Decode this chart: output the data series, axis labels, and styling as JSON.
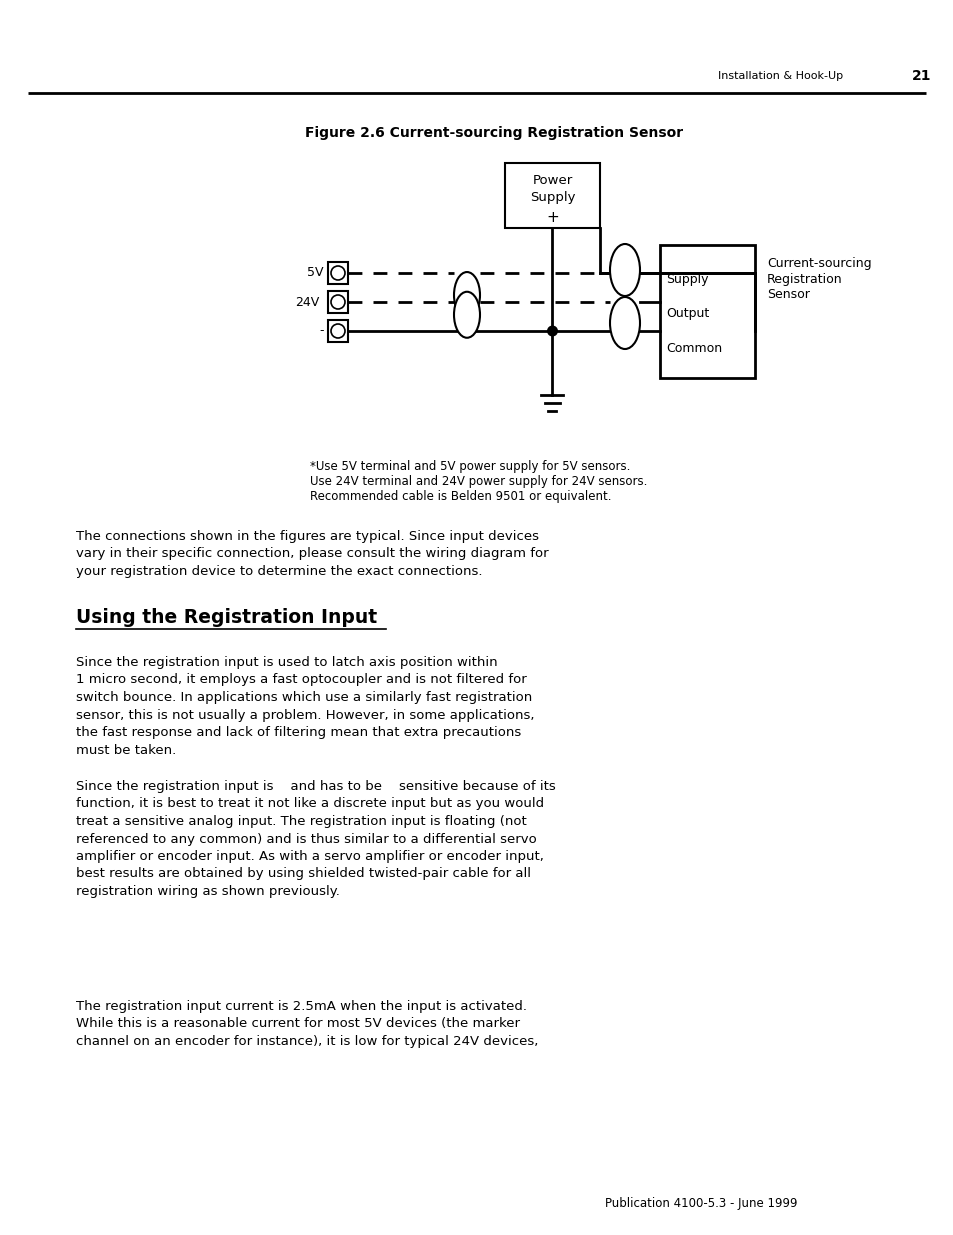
{
  "page_header_right": "Installation & Hook-Up",
  "page_number": "21",
  "figure_title": "Figure 2.6 Current-sourcing Registration Sensor",
  "footnote_line1": "*Use 5V terminal and 5V power supply for 5V sensors.",
  "footnote_line2": "Use 24V terminal and 24V power supply for 24V sensors.",
  "footnote_line3": "Recommended cable is Belden 9501 or equivalent.",
  "para1": "The connections shown in the figures are typical. Since input devices vary in their specific connection, please consult the wiring diagram for\nyour registration device to determine the exact connections.",
  "section_title": "Using the Registration Input",
  "para2_lines": [
    "Since the registration input is used to latch axis position within",
    "1 micro second, it employs a fast optocoupler and is not filtered for",
    "switch bounce. In applications which use a similarly fast registration",
    "sensor, this is not usually a problem. However, in some applications,",
    "the fast response and lack of filtering mean that extra precautions",
    "must be taken."
  ],
  "para3_lines": [
    "Since the registration input is    and has to be    sensitive because of its",
    "function, it is best to treat it not like a discrete input but as you would",
    "treat a sensitive analog input. The registration input is floating (not",
    "referenced to any common) and is thus similar to a differential servo",
    "amplifier or encoder input. As with a servo amplifier or encoder input,",
    "best results are obtained by using shielded twisted-pair cable for all",
    "registration wiring as shown previously."
  ],
  "para4_lines": [
    "The registration input current is 2.5mA when the input is activated.",
    "While this is a reasonable current for most 5V devices (the marker",
    "channel on an encoder for instance), it is low for typical 24V devices,"
  ],
  "footer": "Publication 4100-5.3 - June 1999",
  "bg_color": "#ffffff"
}
